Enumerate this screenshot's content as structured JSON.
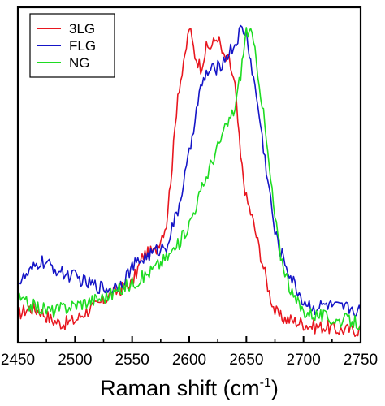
{
  "chart_data": {
    "type": "line",
    "title": "",
    "xlabel": "Raman shift (cm",
    "xlabel_sup": "-1",
    "xlabel_suffix": ")",
    "ylabel": "",
    "xlim": [
      2450,
      2750
    ],
    "ylim": [
      0,
      1.0
    ],
    "x_ticks": [
      2450,
      2500,
      2550,
      2600,
      2650,
      2700,
      2750
    ],
    "x_tick_labels": [
      "2450",
      "2500",
      "2550",
      "2600",
      "2650",
      "2700",
      "2750"
    ],
    "y_tick_labels_shown": false,
    "grid": false,
    "legend_position": "top-left",
    "series": [
      {
        "name": "3LG",
        "color": "#e8171f",
        "x": [
          2450,
          2460,
          2470,
          2480,
          2490,
          2500,
          2510,
          2520,
          2530,
          2540,
          2550,
          2560,
          2570,
          2580,
          2585,
          2590,
          2595,
          2600,
          2605,
          2610,
          2615,
          2620,
          2625,
          2630,
          2635,
          2640,
          2645,
          2650,
          2655,
          2660,
          2665,
          2670,
          2675,
          2680,
          2690,
          2700,
          2710,
          2720,
          2730,
          2740,
          2750
        ],
        "y": [
          0.07,
          0.09,
          0.08,
          0.05,
          0.04,
          0.05,
          0.08,
          0.1,
          0.13,
          0.15,
          0.17,
          0.26,
          0.27,
          0.36,
          0.55,
          0.78,
          0.86,
          0.99,
          0.9,
          0.86,
          0.92,
          0.93,
          0.96,
          0.89,
          0.88,
          0.8,
          0.57,
          0.44,
          0.38,
          0.3,
          0.22,
          0.14,
          0.08,
          0.06,
          0.05,
          0.04,
          0.03,
          0.03,
          0.02,
          0.02,
          0.02
        ]
      },
      {
        "name": "FLG",
        "color": "#1515c7",
        "x": [
          2450,
          2460,
          2470,
          2480,
          2490,
          2500,
          2510,
          2520,
          2530,
          2540,
          2550,
          2560,
          2570,
          2580,
          2590,
          2600,
          2605,
          2610,
          2615,
          2620,
          2625,
          2630,
          2635,
          2640,
          2645,
          2650,
          2655,
          2660,
          2665,
          2670,
          2675,
          2680,
          2690,
          2700,
          2710,
          2720,
          2730,
          2740,
          2750
        ],
        "y": [
          0.17,
          0.2,
          0.24,
          0.22,
          0.2,
          0.19,
          0.17,
          0.16,
          0.15,
          0.17,
          0.22,
          0.25,
          0.27,
          0.29,
          0.4,
          0.58,
          0.7,
          0.79,
          0.84,
          0.85,
          0.86,
          0.88,
          0.91,
          0.93,
          0.98,
          0.97,
          0.85,
          0.74,
          0.6,
          0.47,
          0.33,
          0.27,
          0.18,
          0.11,
          0.09,
          0.1,
          0.09,
          0.09,
          0.08
        ]
      },
      {
        "name": "NG",
        "color": "#1edc22",
        "x": [
          2450,
          2460,
          2470,
          2480,
          2490,
          2500,
          2510,
          2520,
          2530,
          2540,
          2550,
          2560,
          2570,
          2580,
          2590,
          2600,
          2610,
          2620,
          2630,
          2640,
          2645,
          2650,
          2655,
          2660,
          2665,
          2670,
          2675,
          2680,
          2690,
          2700,
          2710,
          2720,
          2730,
          2740,
          2750
        ],
        "y": [
          0.12,
          0.1,
          0.09,
          0.08,
          0.09,
          0.1,
          0.11,
          0.12,
          0.13,
          0.15,
          0.17,
          0.19,
          0.22,
          0.25,
          0.29,
          0.36,
          0.46,
          0.56,
          0.65,
          0.73,
          0.84,
          0.98,
          0.96,
          0.85,
          0.71,
          0.54,
          0.38,
          0.26,
          0.13,
          0.08,
          0.07,
          0.06,
          0.05,
          0.05,
          0.04
        ]
      }
    ]
  }
}
